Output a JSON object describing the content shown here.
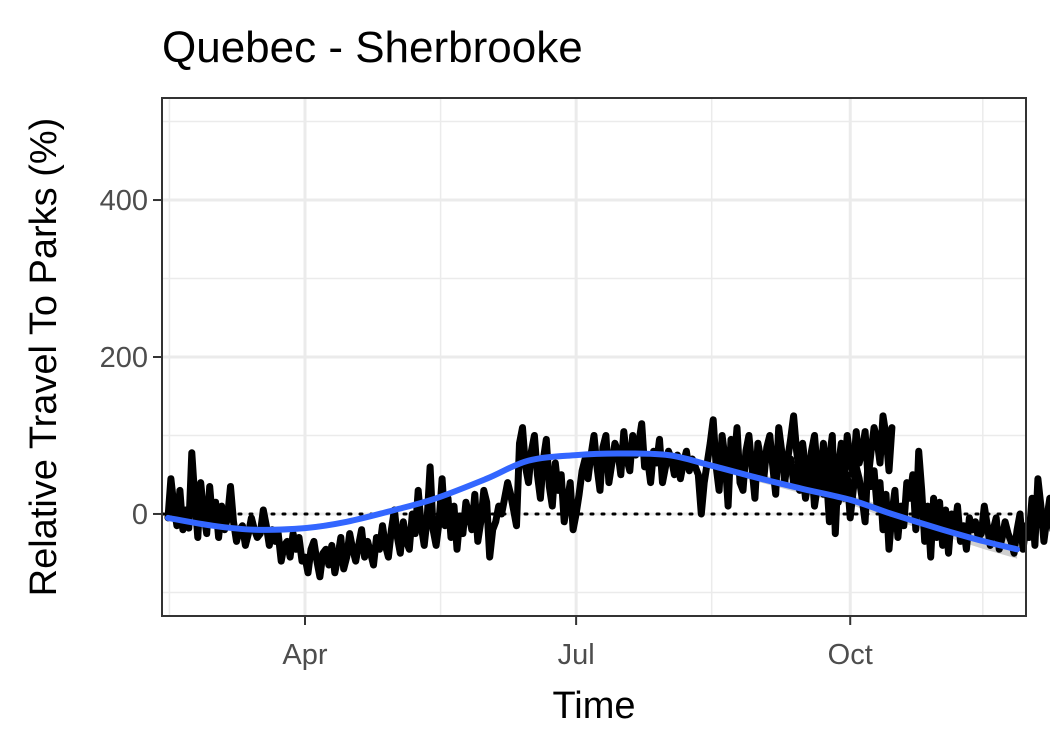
{
  "chart_data": {
    "type": "line",
    "title": "Quebec - Sherbrooke",
    "xlabel": "Time",
    "ylabel": "Relative Travel To Parks (%)",
    "x_ticks": [
      {
        "label": "Apr",
        "date": "2020-04-01"
      },
      {
        "label": "Jul",
        "date": "2020-07-01"
      },
      {
        "label": "Oct",
        "date": "2020-10-01"
      }
    ],
    "y_ticks": [
      0,
      200,
      400
    ],
    "xlim": [
      "2020-02-13",
      "2020-11-29"
    ],
    "ylim": [
      -130,
      530
    ],
    "grid": true,
    "baseline": 0,
    "series": [
      {
        "style": "black-line",
        "segments": [
          {
            "start": "2020-02-15",
            "values": [
              -5,
              45,
              10,
              -15,
              30,
              -20,
              5,
              -18,
              78,
              20,
              -30,
              40,
              0,
              -25,
              35,
              -10,
              15,
              -30,
              10,
              -20,
              -5,
              35,
              -10,
              -35,
              -20,
              -15,
              -40,
              -25,
              -5,
              -20,
              -30,
              -25,
              5,
              -15,
              -40,
              -20,
              -35,
              -25,
              -60,
              -40,
              -35,
              -55,
              -25,
              -45,
              -30,
              -60,
              -55,
              -75,
              -45,
              -35,
              -60,
              -80,
              -50,
              -45,
              -65,
              -40,
              -75,
              -55,
              -30,
              -70,
              -55,
              -25,
              -45,
              -60,
              -40,
              -20,
              -55,
              -35,
              -50,
              -65,
              -30,
              -45,
              -15,
              -40,
              -55,
              -20,
              5,
              -30,
              -50,
              -10,
              -35,
              -45,
              0,
              -25,
              30,
              -15,
              -40,
              -5,
              60,
              -20,
              -40,
              -10,
              45,
              -15,
              20,
              -30,
              10,
              -45,
              -5,
              -25,
              15,
              0,
              -20,
              25,
              -35,
              -10,
              30,
              15,
              -55,
              -20,
              -10,
              10,
              0,
              20,
              40,
              25,
              5,
              -15,
              90,
              110,
              60,
              40,
              80,
              100,
              50,
              20,
              70,
              95,
              35,
              10,
              65,
              30,
              50,
              -10,
              15,
              40,
              -20,
              0,
              25,
              55,
              70,
              45,
              75,
              100,
              60,
              30,
              85,
              100,
              40,
              65,
              90,
              80,
              50,
              105,
              70,
              55,
              100,
              75,
              90,
              115,
              60,
              70,
              40,
              80,
              65,
              95,
              40,
              60,
              80,
              70,
              50,
              75,
              45,
              65,
              80,
              55,
              70,
              60,
              50,
              0,
              40,
              65,
              90,
              120,
              60,
              30,
              100,
              70,
              10,
              95,
              60,
              110,
              40,
              30,
              80,
              100,
              60,
              20,
              90,
              70,
              45,
              85,
              100,
              60,
              25,
              110,
              80,
              40,
              70,
              95,
              125,
              80,
              50,
              90,
              60,
              30,
              80,
              100,
              55,
              45,
              90,
              30,
              70,
              100,
              -25,
              60,
              90,
              40,
              100,
              70,
              50,
              105,
              65,
              80,
              105,
              45,
              80,
              110,
              95,
              65,
              125,
              100,
              55,
              110
            ]
          },
          {
            "start": "2020-09-11",
            "values": [
              70,
              40,
              60,
              30,
              55,
              20,
              45,
              65,
              10,
              35,
              60,
              25,
              50,
              -10,
              30,
              55,
              15,
              40,
              20,
              50,
              -5,
              30,
              60,
              45,
              20,
              -10,
              70,
              35,
              55,
              10,
              40,
              -20,
              25,
              -45,
              0,
              30,
              -30,
              10,
              -15,
              40,
              20,
              50,
              -20,
              80,
              30,
              -35,
              10,
              -55,
              20,
              -30,
              15,
              -40,
              5,
              -50,
              0,
              -20,
              10,
              -35,
              -15,
              -45,
              -5,
              -20,
              -10,
              -30,
              -25,
              10,
              -15,
              -40,
              -20,
              -5,
              -45,
              -30,
              -10,
              -25,
              -35,
              -50,
              -20,
              0,
              -45,
              -15,
              -30,
              20,
              -40,
              45,
              10,
              -35,
              -5,
              20,
              -20,
              -30,
              -45,
              -50
            ]
          }
        ]
      },
      {
        "style": "smooth-trend",
        "color": "#3366ff",
        "band_color": "#bfbfbf",
        "x": [
          "2020-02-15",
          "2020-03-01",
          "2020-03-15",
          "2020-04-01",
          "2020-04-15",
          "2020-05-01",
          "2020-05-15",
          "2020-06-01",
          "2020-06-15",
          "2020-07-01",
          "2020-07-15",
          "2020-08-01",
          "2020-08-15",
          "2020-09-01",
          "2020-09-15",
          "2020-10-01",
          "2020-10-15",
          "2020-11-01",
          "2020-11-15",
          "2020-11-26"
        ],
        "values": [
          -5,
          -15,
          -20,
          -18,
          -10,
          5,
          20,
          45,
          68,
          75,
          77,
          75,
          62,
          45,
          32,
          18,
          0,
          -20,
          -35,
          -45
        ],
        "band": [
          4,
          3,
          3,
          3,
          3,
          3,
          3,
          3,
          3,
          3,
          3,
          4,
          4,
          5,
          6,
          6,
          7,
          8,
          10,
          12
        ]
      }
    ]
  }
}
